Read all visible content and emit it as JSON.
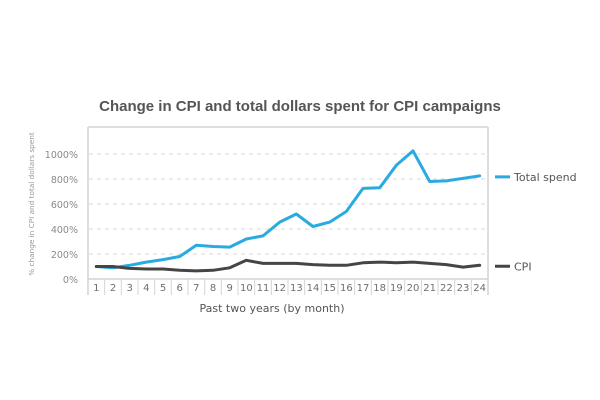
{
  "chart_data": {
    "type": "line",
    "title": "Change in CPI and total dollars spent for CPI campaigns",
    "xlabel": "Past two years (by month)",
    "ylabel": "% change in CPI and total dollars spent",
    "x": [
      "1",
      "2",
      "3",
      "4",
      "5",
      "6",
      "7",
      "8",
      "9",
      "10",
      "11",
      "12",
      "13",
      "14",
      "15",
      "16",
      "17",
      "18",
      "19",
      "20",
      "21",
      "22",
      "23",
      "24"
    ],
    "ylim": [
      0,
      1200
    ],
    "yticks": [
      0,
      200,
      400,
      600,
      800,
      1000
    ],
    "ytick_labels": [
      "0%",
      "200%",
      "400%",
      "600%",
      "800%",
      "1000%"
    ],
    "grid": "horizontal-dashed",
    "legend_position": "right",
    "series": [
      {
        "name": "Total spend",
        "color": "#29abe2",
        "values": [
          100,
          90,
          110,
          135,
          155,
          180,
          270,
          260,
          255,
          320,
          345,
          455,
          520,
          420,
          455,
          540,
          725,
          730,
          910,
          1025,
          780,
          785,
          805,
          825
        ]
      },
      {
        "name": "CPI",
        "color": "#454545",
        "values": [
          100,
          100,
          85,
          80,
          80,
          70,
          65,
          70,
          90,
          150,
          125,
          125,
          125,
          115,
          110,
          110,
          130,
          135,
          130,
          135,
          125,
          115,
          95,
          110
        ]
      }
    ]
  },
  "colors": {
    "frame": "#d4d4d4",
    "grid": "#d9d9d9"
  }
}
